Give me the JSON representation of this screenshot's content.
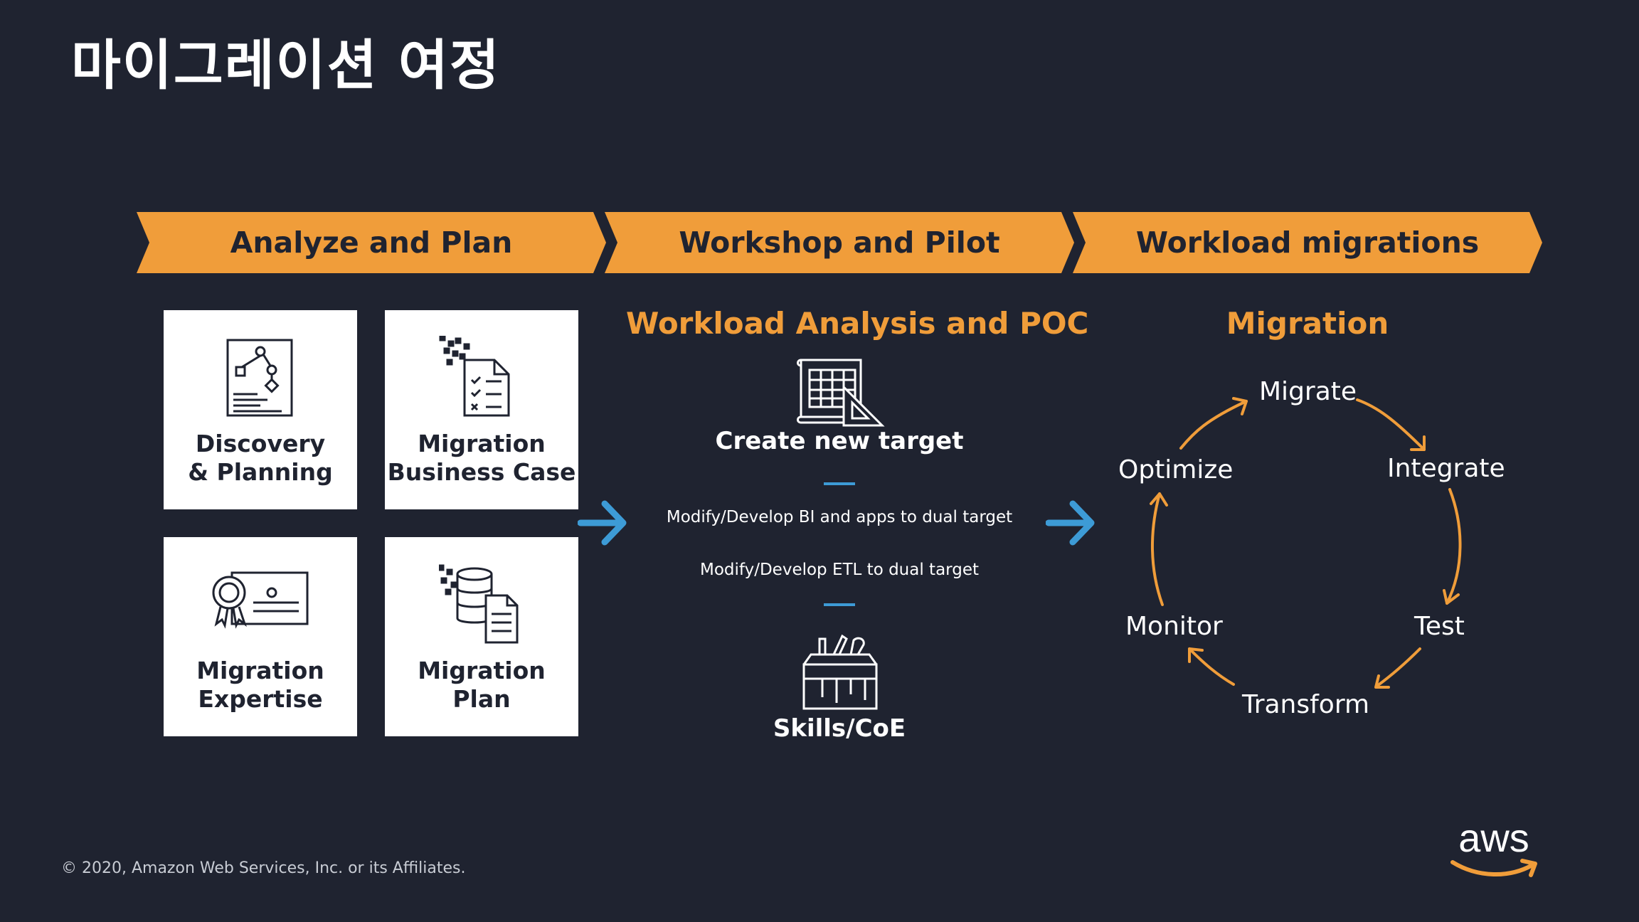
{
  "title": "마이그레이션 여정",
  "phases": [
    {
      "label": "Analyze and Plan"
    },
    {
      "label": "Workshop and Pilot"
    },
    {
      "label": "Workload migrations"
    }
  ],
  "analyze_cards": [
    {
      "line1": "Discovery",
      "line2": "& Planning",
      "icon": "discovery-planning-icon"
    },
    {
      "line1": "Migration",
      "line2": "Business Case",
      "icon": "business-case-icon"
    },
    {
      "line1": "Migration",
      "line2": "Expertise",
      "icon": "certificate-icon"
    },
    {
      "line1": "Migration",
      "line2": "Plan",
      "icon": "database-plan-icon"
    }
  ],
  "workshop": {
    "title": "Workload Analysis and POC",
    "create_label": "Create new target",
    "item1": "Modify/Develop BI and apps to dual target",
    "item2": "Modify/Develop ETL to dual target",
    "skills_label": "Skills/CoE"
  },
  "migration": {
    "title": "Migration",
    "steps": [
      "Migrate",
      "Integrate",
      "Test",
      "Transform",
      "Monitor",
      "Optimize"
    ]
  },
  "footer": {
    "copyright": "© 2020, Amazon Web Services, Inc. or its Affiliates.",
    "logo_text": "aws"
  },
  "colors": {
    "background": "#1f2330",
    "accent_orange": "#f09d3a",
    "arrow_blue": "#3d9bd6",
    "card_white": "#ffffff"
  }
}
